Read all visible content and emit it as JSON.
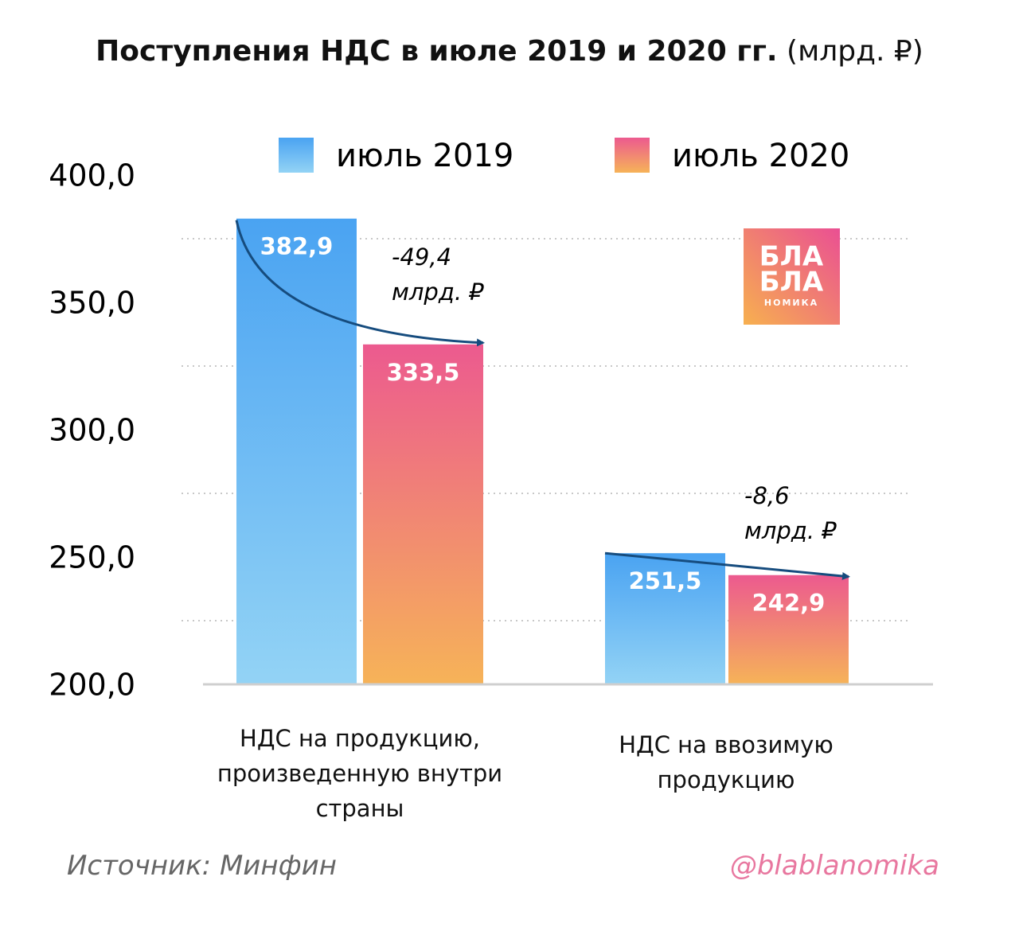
{
  "chart_data": {
    "type": "bar",
    "title": "Поступления НДС в июле 2019 и 2020 гг.",
    "units": "(млрд. ₽)",
    "categories": [
      "НДС на продукцию, произведенную внутри страны",
      "НДС на ввозимую продукцию"
    ],
    "series": [
      {
        "name": "июль 2019",
        "color": "#4aa3f2",
        "values": [
          382.9,
          251.5
        ],
        "value_labels": [
          "382,9",
          "251,5"
        ]
      },
      {
        "name": "июль 2020",
        "color": "#ec5a8f",
        "values": [
          333.5,
          242.9
        ],
        "value_labels": [
          "333,5",
          "242,9"
        ]
      }
    ],
    "ylim": [
      200,
      400
    ],
    "yticks": [
      {
        "value": 200,
        "label": "200,0"
      },
      {
        "value": 250,
        "label": "250,0"
      },
      {
        "value": 300,
        "label": "300,0"
      },
      {
        "value": 350,
        "label": "350,0"
      },
      {
        "value": 400,
        "label": "400,0"
      }
    ],
    "grid_lines": [
      225,
      275,
      325,
      375
    ],
    "annotations": [
      {
        "lines": [
          "-49,4",
          "млрд. ₽"
        ]
      },
      {
        "lines": [
          "-8,6",
          "млрд. ₽"
        ]
      }
    ],
    "source": "Источник: Минфин",
    "handle": "@blablanomika",
    "logo": [
      "БЛА",
      "БЛА",
      "НОМИКА"
    ]
  }
}
